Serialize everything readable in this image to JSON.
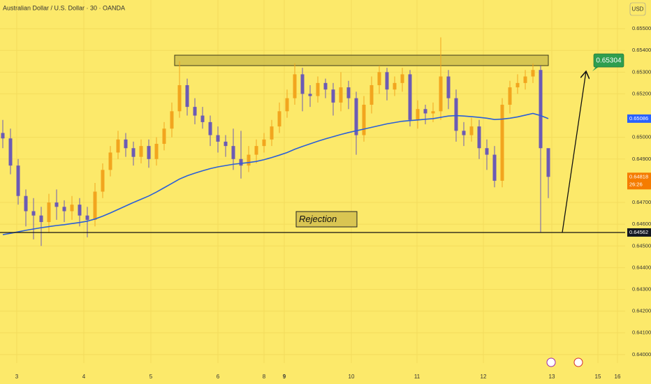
{
  "chart_data": {
    "type": "candlestick",
    "title": "Australian Dollar / U.S. Dollar · 30 · OANDA",
    "currency": "USD",
    "ylim": [
      0.63961,
      0.65632
    ],
    "yticks": [
      {
        "value": 0.655,
        "label": "0.65500"
      },
      {
        "value": 0.654,
        "label": "0.65400"
      },
      {
        "value": 0.653,
        "label": "0.65300"
      },
      {
        "value": 0.652,
        "label": "0.65200"
      },
      {
        "value": 0.65,
        "label": "0.65000"
      },
      {
        "value": 0.649,
        "label": "0.64900"
      },
      {
        "value": 0.647,
        "label": "0.64700"
      },
      {
        "value": 0.646,
        "label": "0.64600"
      },
      {
        "value": 0.645,
        "label": "0.64500"
      },
      {
        "value": 0.644,
        "label": "0.64400"
      },
      {
        "value": 0.643,
        "label": "0.64300"
      },
      {
        "value": 0.642,
        "label": "0.64200"
      },
      {
        "value": 0.641,
        "label": "0.64100"
      },
      {
        "value": 0.64,
        "label": "0.64000"
      }
    ],
    "grid": true,
    "x_labels": [
      "3",
      "4",
      "5",
      "6",
      "8",
      "9",
      "10",
      "11",
      "12",
      "13",
      "15",
      "16"
    ],
    "up_color": "#f2a51e",
    "down_color": "#6b5bb5",
    "candles": {
      "open": [
        0.6502,
        0.64995,
        0.6487,
        0.6473,
        0.6466,
        0.6464,
        0.6461,
        0.647,
        0.6468,
        0.6466,
        0.6469,
        0.6464,
        0.6462,
        0.6475,
        0.6485,
        0.6493,
        0.6499,
        0.6495,
        0.6491,
        0.6496,
        0.649,
        0.6497,
        0.6504,
        0.6512,
        0.6524,
        0.6514,
        0.651,
        0.6507,
        0.6501,
        0.6498,
        0.6496,
        0.649,
        0.6487,
        0.6492,
        0.6496,
        0.6499,
        0.6505,
        0.6512,
        0.6518,
        0.6529,
        0.652,
        0.6519,
        0.6525,
        0.6522,
        0.6516,
        0.6523,
        0.6518,
        0.6501,
        0.6515,
        0.6524,
        0.653,
        0.6522,
        0.6525,
        0.6529,
        0.6508,
        0.6513,
        0.6511,
        0.6512,
        0.6528,
        0.6518,
        0.6503,
        0.6501,
        0.6505,
        0.6495,
        0.6492,
        0.648,
        0.6515,
        0.6523,
        0.6525,
        0.6528,
        0.6531,
        0.6495
      ],
      "high": [
        0.6508,
        0.6504,
        0.649,
        0.6476,
        0.6472,
        0.6468,
        0.6474,
        0.6476,
        0.6471,
        0.6473,
        0.6472,
        0.6468,
        0.6479,
        0.6488,
        0.6496,
        0.6503,
        0.6502,
        0.6498,
        0.6499,
        0.6499,
        0.65,
        0.6507,
        0.6516,
        0.6535,
        0.6527,
        0.6518,
        0.6514,
        0.651,
        0.6505,
        0.6501,
        0.6504,
        0.6503,
        0.6496,
        0.6499,
        0.6502,
        0.6508,
        0.6516,
        0.6522,
        0.6534,
        0.6532,
        0.6524,
        0.6528,
        0.6527,
        0.6525,
        0.653,
        0.6526,
        0.6521,
        0.6519,
        0.6528,
        0.6533,
        0.6532,
        0.6528,
        0.6532,
        0.6531,
        0.6517,
        0.6515,
        0.6516,
        0.6546,
        0.6531,
        0.6522,
        0.6507,
        0.6509,
        0.6508,
        0.6499,
        0.6496,
        0.6518,
        0.6526,
        0.6529,
        0.6531,
        0.6534,
        0.6533,
        0.6489
      ],
      "low": [
        0.6495,
        0.6483,
        0.6469,
        0.6459,
        0.6453,
        0.645,
        0.6456,
        0.6462,
        0.6461,
        0.6462,
        0.6459,
        0.6454,
        0.6459,
        0.6472,
        0.6482,
        0.649,
        0.6491,
        0.6487,
        0.6488,
        0.6486,
        0.6487,
        0.6494,
        0.65,
        0.6509,
        0.651,
        0.6506,
        0.6504,
        0.6496,
        0.6493,
        0.6491,
        0.6485,
        0.6481,
        0.6484,
        0.6488,
        0.6493,
        0.6496,
        0.6502,
        0.6509,
        0.6515,
        0.6512,
        0.6514,
        0.6516,
        0.6518,
        0.651,
        0.6512,
        0.6513,
        0.6492,
        0.6498,
        0.6511,
        0.652,
        0.6517,
        0.6519,
        0.6521,
        0.6505,
        0.6504,
        0.6506,
        0.6507,
        0.6508,
        0.6513,
        0.6498,
        0.6496,
        0.6498,
        0.649,
        0.6485,
        0.6477,
        0.6477,
        0.6511,
        0.652,
        0.6522,
        0.6525,
        0.64562,
        0.6472
      ],
      "close": [
        0.64995,
        0.6487,
        0.6473,
        0.6466,
        0.6464,
        0.6461,
        0.647,
        0.6468,
        0.6466,
        0.6469,
        0.6464,
        0.6462,
        0.6475,
        0.6485,
        0.6493,
        0.6499,
        0.6495,
        0.6491,
        0.6496,
        0.649,
        0.6497,
        0.6504,
        0.6512,
        0.6524,
        0.6514,
        0.651,
        0.6507,
        0.6501,
        0.6498,
        0.6496,
        0.649,
        0.6487,
        0.6492,
        0.6496,
        0.6499,
        0.6505,
        0.6512,
        0.6518,
        0.6529,
        0.652,
        0.6519,
        0.6525,
        0.6522,
        0.6516,
        0.6523,
        0.6518,
        0.6501,
        0.6515,
        0.6524,
        0.653,
        0.6522,
        0.6525,
        0.6529,
        0.6508,
        0.6513,
        0.6511,
        0.6512,
        0.6528,
        0.6518,
        0.6503,
        0.6501,
        0.6505,
        0.6495,
        0.6492,
        0.648,
        0.6515,
        0.6523,
        0.6525,
        0.6528,
        0.6531,
        0.6495,
        0.64818
      ]
    },
    "ma": {
      "color": "#2a5fd8",
      "values": [
        0.64552,
        0.64558,
        0.64565,
        0.64572,
        0.64578,
        0.64584,
        0.64589,
        0.64594,
        0.64598,
        0.64603,
        0.64608,
        0.64614,
        0.64624,
        0.64637,
        0.64652,
        0.64668,
        0.64684,
        0.647,
        0.64715,
        0.6473,
        0.64748,
        0.64768,
        0.64788,
        0.64808,
        0.64823,
        0.64835,
        0.64846,
        0.64856,
        0.64864,
        0.6487,
        0.64876,
        0.6488,
        0.64884,
        0.64889,
        0.64897,
        0.64907,
        0.64918,
        0.6493,
        0.64945,
        0.64958,
        0.6497,
        0.64982,
        0.64993,
        0.65003,
        0.65013,
        0.65022,
        0.6503,
        0.65038,
        0.65046,
        0.65054,
        0.65062,
        0.65068,
        0.65074,
        0.65077,
        0.6508,
        0.65083,
        0.65086,
        0.65092,
        0.65098,
        0.651,
        0.65098,
        0.65095,
        0.65092,
        0.65088,
        0.65082,
        0.65084,
        0.65088,
        0.65094,
        0.65102,
        0.6511,
        0.651,
        0.65086
      ]
    },
    "resistance_zone": {
      "top": 0.65378,
      "bottom": 0.6533
    },
    "support_level": 0.64562,
    "target": 0.65304,
    "annotation": "Rejection",
    "price_labels": [
      {
        "value": 0.65086,
        "color": "#2962ff"
      },
      {
        "value": 0.64818,
        "countdown": "26:26",
        "color": "#f57c00"
      },
      {
        "value": 0.64562,
        "color": "#131722"
      }
    ]
  }
}
